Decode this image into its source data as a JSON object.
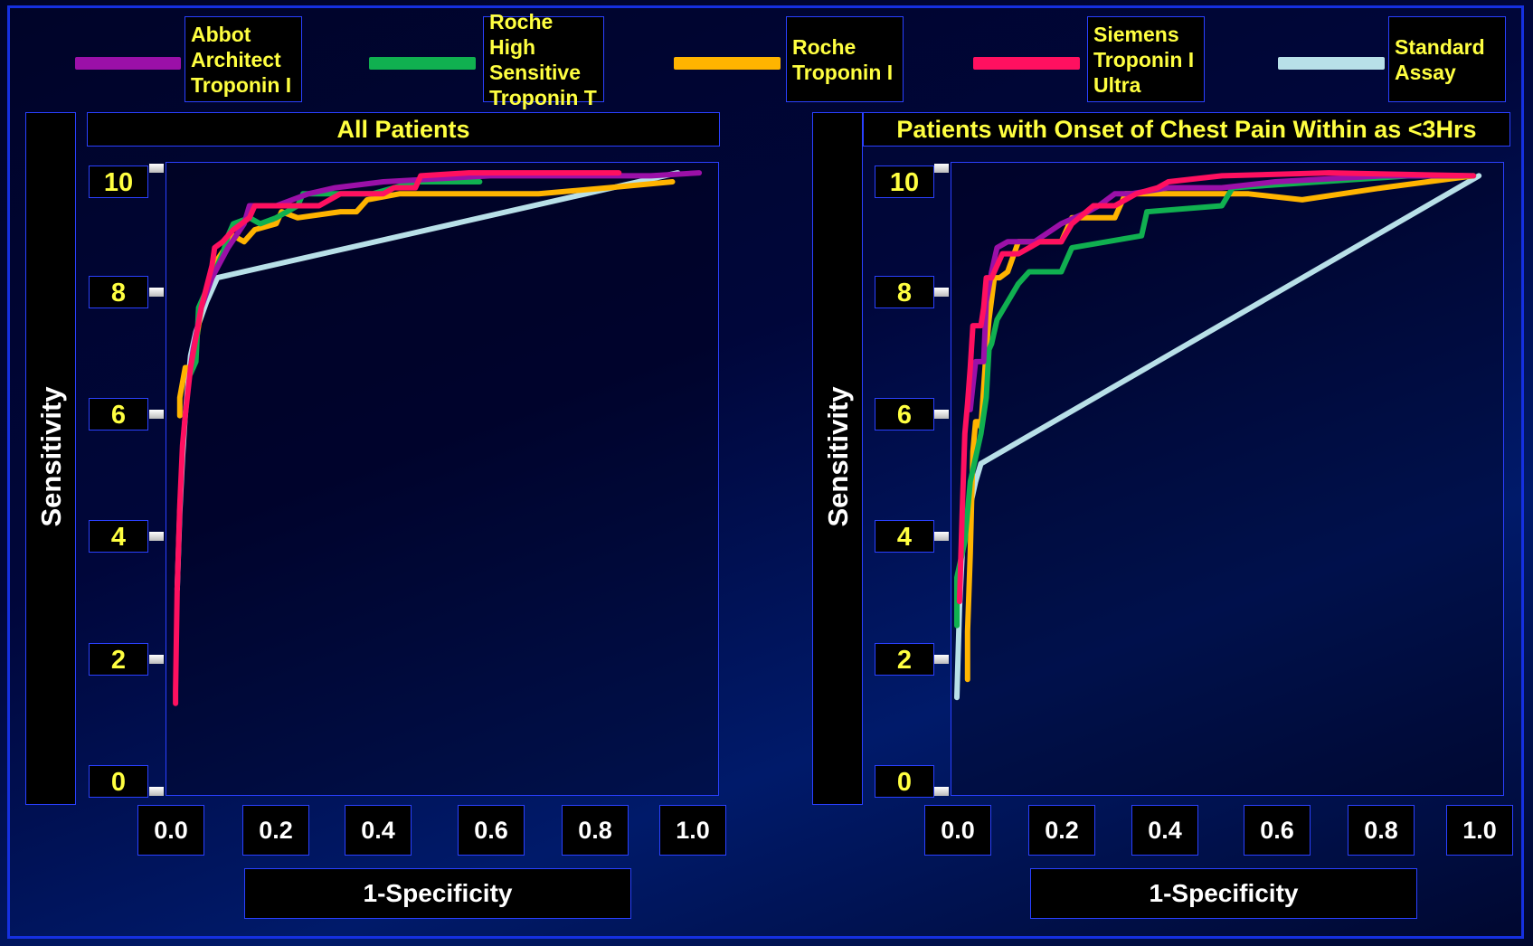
{
  "legend": [
    {
      "label": [
        "Abbot",
        "Architect",
        "Troponin I"
      ],
      "color": "#9b10a8"
    },
    {
      "label": [
        "Roche High",
        "Sensitive",
        "Troponin T"
      ],
      "color": "#10b050"
    },
    {
      "label": [
        "Roche",
        "Troponin I"
      ],
      "color": "#ffb400"
    },
    {
      "label": [
        "Siemens",
        "Troponin I",
        "Ultra"
      ],
      "color": "#ff1060"
    },
    {
      "label": [
        "Standard",
        "Assay"
      ],
      "color": "#b8e0e8"
    }
  ],
  "chart_data": [
    {
      "type": "line",
      "title": "All Patients",
      "xlabel": "1-Specificity",
      "ylabel": "Sensitivity",
      "xlim": [
        0.0,
        1.0
      ],
      "ylim": [
        0,
        10
      ],
      "xticks": [
        "0.0",
        "0.2",
        "0.4",
        "0.6",
        "0.8",
        "1.0"
      ],
      "yticks": [
        "10",
        "8",
        "6",
        "4",
        "2",
        "0"
      ],
      "series": [
        {
          "name": "Abbot Architect Troponin I",
          "color": "#9b10a8",
          "x": [
            0.04,
            0.045,
            0.06,
            0.08,
            0.11,
            0.14,
            0.15,
            0.2,
            0.26,
            0.31,
            0.4,
            0.6,
            0.82,
            0.9,
            0.99
          ],
          "y": [
            6.9,
            7.2,
            7.9,
            8.4,
            8.9,
            9.3,
            9.6,
            9.6,
            9.8,
            9.9,
            10.0,
            10.1,
            10.1,
            10.1,
            10.15
          ]
        },
        {
          "name": "Roche High Sensitive Troponin T",
          "color": "#10b050",
          "x": [
            0.04,
            0.05,
            0.055,
            0.07,
            0.1,
            0.11,
            0.12,
            0.15,
            0.17,
            0.2,
            0.24,
            0.25,
            0.3,
            0.38,
            0.46,
            0.58
          ],
          "y": [
            6.8,
            7.0,
            7.9,
            8.2,
            8.8,
            9.1,
            9.3,
            9.4,
            9.3,
            9.4,
            9.6,
            9.8,
            9.8,
            9.8,
            10.0,
            10.0
          ]
        },
        {
          "name": "Roche Troponin I",
          "color": "#ffb400",
          "x": [
            0.02,
            0.02,
            0.03,
            0.045,
            0.05,
            0.06,
            0.09,
            0.12,
            0.14,
            0.16,
            0.2,
            0.21,
            0.24,
            0.32,
            0.35,
            0.37,
            0.43,
            0.62,
            0.69,
            0.82,
            0.94
          ],
          "y": [
            6.1,
            6.4,
            6.9,
            6.9,
            7.3,
            7.9,
            8.7,
            9.1,
            9.0,
            9.2,
            9.3,
            9.5,
            9.4,
            9.5,
            9.5,
            9.7,
            9.8,
            9.8,
            9.8,
            9.9,
            10.0
          ]
        },
        {
          "name": "Siemens Troponin I Ultra",
          "color": "#ff1060",
          "x": [
            0.012,
            0.012,
            0.015,
            0.02,
            0.025,
            0.03,
            0.04,
            0.06,
            0.08,
            0.085,
            0.1,
            0.12,
            0.15,
            0.16,
            0.24,
            0.28,
            0.3,
            0.32,
            0.37,
            0.4,
            0.42,
            0.46,
            0.47,
            0.56,
            0.72,
            0.84
          ],
          "y": [
            1.3,
            1.5,
            3.2,
            4.6,
            5.6,
            6.1,
            6.9,
            7.9,
            8.6,
            8.9,
            9.0,
            9.2,
            9.4,
            9.6,
            9.6,
            9.6,
            9.7,
            9.8,
            9.8,
            9.8,
            9.9,
            9.9,
            10.1,
            10.15,
            10.15,
            10.15
          ]
        },
        {
          "name": "Standard Assay",
          "color": "#b8e0e8",
          "x": [
            0.015,
            0.02,
            0.025,
            0.03,
            0.035,
            0.04,
            0.05,
            0.07,
            0.09,
            0.95
          ],
          "y": [
            3.2,
            4.5,
            5.4,
            6.1,
            6.6,
            7.1,
            7.5,
            8.0,
            8.4,
            10.15
          ]
        }
      ]
    },
    {
      "type": "line",
      "title": "Patients with Onset of Chest Pain Within as <3Hrs",
      "xlabel": "1-Specificity",
      "ylabel": "Sensitivity",
      "xlim": [
        0.0,
        1.0
      ],
      "ylim": [
        0,
        10
      ],
      "xticks": [
        "0.0",
        "0.2",
        "0.4",
        "0.6",
        "0.8",
        "1.0"
      ],
      "yticks": [
        "10",
        "8",
        "6",
        "4",
        "2",
        "0"
      ],
      "series": [
        {
          "name": "Abbot Architect Troponin I",
          "color": "#9b10a8",
          "x": [
            0.03,
            0.035,
            0.04,
            0.055,
            0.06,
            0.07,
            0.08,
            0.1,
            0.15,
            0.2,
            0.25,
            0.27,
            0.3,
            0.33,
            0.4,
            0.5,
            0.6,
            0.8,
            0.95
          ],
          "y": [
            6.2,
            6.6,
            7.0,
            7.0,
            8.0,
            8.5,
            8.9,
            9.0,
            9.0,
            9.3,
            9.5,
            9.6,
            9.8,
            9.8,
            9.9,
            9.9,
            10.0,
            10.1,
            10.1
          ]
        },
        {
          "name": "Roche High Sensitive Troponin T",
          "color": "#10b050",
          "x": [
            0.005,
            0.005,
            0.01,
            0.02,
            0.03,
            0.05,
            0.06,
            0.065,
            0.07,
            0.08,
            0.1,
            0.12,
            0.14,
            0.2,
            0.22,
            0.35,
            0.36,
            0.5,
            0.52,
            0.85,
            0.97
          ],
          "y": [
            2.6,
            3.4,
            3.6,
            4.0,
            5.0,
            5.8,
            6.4,
            7.2,
            7.3,
            7.7,
            8.0,
            8.3,
            8.5,
            8.5,
            8.9,
            9.1,
            9.5,
            9.6,
            9.9,
            10.1,
            10.1
          ]
        },
        {
          "name": "Roche Troponin I",
          "color": "#ffb400",
          "x": [
            0.025,
            0.025,
            0.03,
            0.035,
            0.04,
            0.045,
            0.05,
            0.06,
            0.065,
            0.075,
            0.085,
            0.1,
            0.12,
            0.2,
            0.22,
            0.25,
            0.3,
            0.32,
            0.4,
            0.55,
            0.65,
            0.8,
            0.97
          ],
          "y": [
            1.7,
            2.5,
            3.8,
            5.5,
            6.0,
            6.0,
            5.9,
            7.2,
            7.7,
            8.4,
            8.4,
            8.5,
            9.0,
            9.0,
            9.4,
            9.4,
            9.4,
            9.8,
            9.8,
            9.8,
            9.7,
            9.9,
            10.1
          ]
        },
        {
          "name": "Siemens Troponin I Ultra",
          "color": "#ff1060",
          "x": [
            0.01,
            0.015,
            0.02,
            0.025,
            0.03,
            0.035,
            0.05,
            0.055,
            0.06,
            0.07,
            0.08,
            0.09,
            0.12,
            0.16,
            0.2,
            0.22,
            0.26,
            0.3,
            0.34,
            0.38,
            0.4,
            0.5,
            0.7,
            0.97
          ],
          "y": [
            3.0,
            4.5,
            5.8,
            6.3,
            6.9,
            7.6,
            7.6,
            7.9,
            8.4,
            8.4,
            8.6,
            8.8,
            8.8,
            9.0,
            9.0,
            9.3,
            9.6,
            9.6,
            9.8,
            9.9,
            10.0,
            10.1,
            10.15,
            10.1
          ]
        },
        {
          "name": "Standard Assay",
          "color": "#b8e0e8",
          "x": [
            0.005,
            0.01,
            0.015,
            0.02,
            0.03,
            0.04,
            0.05,
            0.98
          ],
          "y": [
            1.4,
            2.9,
            3.8,
            4.1,
            4.6,
            5.0,
            5.3,
            10.1
          ]
        }
      ]
    }
  ]
}
